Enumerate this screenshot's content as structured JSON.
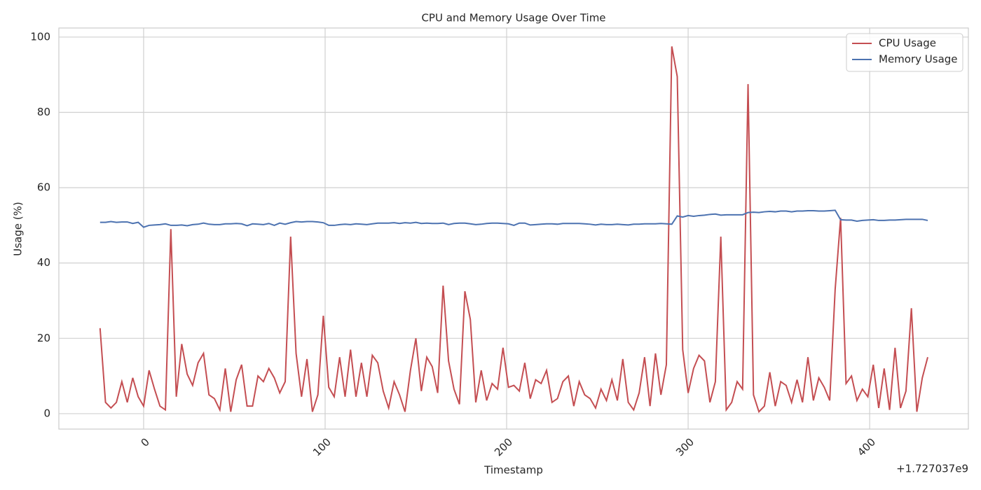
{
  "chart_data": {
    "type": "line",
    "title": "CPU and Memory Usage Over Time",
    "x_label": "Timestamp",
    "y_label": "Usage (%)",
    "x_offset_label": "+1.727037e9",
    "x": [
      -24,
      -21,
      -18,
      -15,
      -12,
      -9,
      -6,
      -3,
      0,
      3,
      6,
      9,
      12,
      15,
      18,
      21,
      24,
      27,
      30,
      33,
      36,
      39,
      42,
      45,
      48,
      51,
      54,
      57,
      60,
      63,
      66,
      69,
      72,
      75,
      78,
      81,
      84,
      87,
      90,
      93,
      96,
      99,
      102,
      105,
      108,
      111,
      114,
      117,
      120,
      123,
      126,
      129,
      132,
      135,
      138,
      141,
      144,
      147,
      150,
      153,
      156,
      159,
      162,
      165,
      168,
      171,
      174,
      177,
      180,
      183,
      186,
      189,
      192,
      195,
      198,
      201,
      204,
      207,
      210,
      213,
      216,
      219,
      222,
      225,
      228,
      231,
      234,
      237,
      240,
      243,
      246,
      249,
      252,
      255,
      258,
      261,
      264,
      267,
      270,
      273,
      276,
      279,
      282,
      285,
      288,
      291,
      294,
      297,
      300,
      303,
      306,
      309,
      312,
      315,
      318,
      321,
      324,
      327,
      330,
      333,
      336,
      339,
      342,
      345,
      348,
      351,
      354,
      357,
      360,
      363,
      366,
      369,
      372,
      375,
      378,
      381,
      384,
      387,
      390,
      393,
      396,
      399,
      402,
      405,
      408,
      411,
      414,
      417,
      420,
      423,
      426,
      429,
      432
    ],
    "series": [
      {
        "name": "CPU Usage",
        "color": "#c44e52",
        "values": [
          22.7,
          3,
          1.5,
          3,
          8.5,
          3,
          9.5,
          4.5,
          2,
          11.5,
          6.5,
          2,
          1,
          49,
          4.5,
          18.5,
          10.5,
          7.5,
          13.5,
          16,
          5,
          4,
          1,
          12,
          0.5,
          9,
          13,
          2,
          2,
          10,
          8.5,
          12,
          9.5,
          5.5,
          8.5,
          47,
          16,
          4.5,
          14.5,
          0.5,
          5,
          26,
          7,
          4.5,
          15,
          4.5,
          17,
          4.5,
          13.5,
          4.5,
          15.5,
          13.5,
          6,
          1.5,
          8.5,
          5,
          0.5,
          11.5,
          20,
          6,
          15,
          12.5,
          5.5,
          34,
          14,
          6.5,
          2.5,
          32.5,
          25,
          3,
          11.5,
          3.5,
          8,
          6.5,
          17.5,
          7,
          7.5,
          6,
          13.5,
          4,
          9,
          8,
          11.5,
          3,
          4,
          8.5,
          10,
          2,
          8.5,
          5,
          4,
          1.5,
          6.5,
          3.5,
          9,
          3.5,
          14.5,
          3,
          1,
          5.5,
          15,
          2,
          16,
          5,
          13,
          97.5,
          89.5,
          17,
          5.5,
          12,
          15.5,
          14,
          3,
          8.5,
          47,
          1,
          3,
          8.5,
          6.5,
          87.5,
          5,
          0.5,
          2,
          11,
          2,
          8.5,
          7.5,
          3,
          9,
          3,
          15,
          3.5,
          9.5,
          7,
          3.5,
          33,
          52,
          8,
          10,
          3.5,
          6.5,
          4.5,
          13,
          1.5,
          12,
          1,
          17.5,
          1.5,
          6,
          28,
          0.5,
          9.5,
          15
        ]
      },
      {
        "name": "Memory Usage",
        "color": "#4c72b0",
        "values": [
          50.8,
          50.8,
          51,
          50.8,
          50.9,
          50.9,
          50.5,
          50.8,
          49.5,
          50,
          50.1,
          50.2,
          50.4,
          50,
          50,
          50.1,
          49.9,
          50.2,
          50.3,
          50.6,
          50.3,
          50.2,
          50.2,
          50.4,
          50.4,
          50.5,
          50.4,
          49.9,
          50.4,
          50.3,
          50.2,
          50.5,
          50,
          50.6,
          50.3,
          50.7,
          51,
          50.9,
          51,
          51,
          50.9,
          50.7,
          50,
          50,
          50.2,
          50.3,
          50.2,
          50.4,
          50.3,
          50.2,
          50.4,
          50.6,
          50.6,
          50.6,
          50.7,
          50.5,
          50.7,
          50.6,
          50.8,
          50.5,
          50.6,
          50.5,
          50.5,
          50.6,
          50.2,
          50.5,
          50.6,
          50.6,
          50.4,
          50.2,
          50.3,
          50.5,
          50.6,
          50.6,
          50.5,
          50.4,
          50,
          50.6,
          50.6,
          50.1,
          50.2,
          50.3,
          50.4,
          50.4,
          50.3,
          50.5,
          50.5,
          50.5,
          50.5,
          50.4,
          50.3,
          50.1,
          50.3,
          50.2,
          50.2,
          50.3,
          50.2,
          50.1,
          50.3,
          50.3,
          50.4,
          50.4,
          50.4,
          50.5,
          50.4,
          50.3,
          52.5,
          52.2,
          52.6,
          52.4,
          52.6,
          52.7,
          52.9,
          53,
          52.7,
          52.8,
          52.8,
          52.8,
          52.8,
          53.4,
          53.5,
          53.4,
          53.6,
          53.7,
          53.6,
          53.8,
          53.8,
          53.6,
          53.8,
          53.8,
          53.9,
          53.9,
          53.8,
          53.8,
          53.9,
          54,
          51.5,
          51.4,
          51.4,
          51.1,
          51.3,
          51.4,
          51.5,
          51.3,
          51.3,
          51.4,
          51.4,
          51.5,
          51.6,
          51.6,
          51.6,
          51.6,
          51.3
        ]
      }
    ],
    "xlim": [
      -46.7,
      454.4
    ],
    "ylim": [
      -4.1,
      102.4
    ],
    "xticks": [
      0,
      100,
      200,
      300,
      400
    ],
    "yticks": [
      0,
      20,
      40,
      60,
      80,
      100
    ],
    "grid": true,
    "legend": "upper right"
  }
}
